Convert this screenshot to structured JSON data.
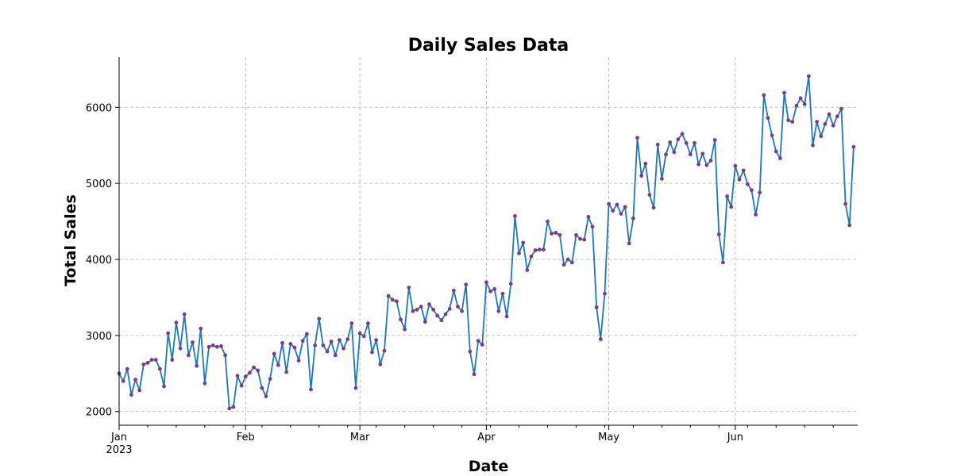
{
  "chart_data": {
    "type": "line",
    "title": "Daily Sales Data",
    "xlabel": "Date",
    "ylabel": "Total Sales",
    "x_start": "2023-01-01",
    "x_end": "2023-07-01",
    "ylim": [
      1820,
      6660
    ],
    "grid": true,
    "line_color": "#1f77b4",
    "marker_color": "#7b3c8c",
    "x_ticks": [
      {
        "date": "2023-01-01",
        "label": "Jan",
        "sublabel": "2023"
      },
      {
        "date": "2023-02-01",
        "label": "Feb"
      },
      {
        "date": "2023-03-01",
        "label": "Mar"
      },
      {
        "date": "2023-04-01",
        "label": "Apr"
      },
      {
        "date": "2023-05-01",
        "label": "May"
      },
      {
        "date": "2023-06-01",
        "label": "Jun"
      }
    ],
    "y_ticks": [
      2000,
      3000,
      4000,
      5000,
      6000
    ],
    "series": [
      {
        "values": [
          2500,
          2400,
          2560,
          2220,
          2420,
          2280,
          2620,
          2640,
          2680,
          2680,
          2560,
          2330,
          3030,
          2680,
          3170,
          2830,
          3280,
          2740,
          2910,
          2600,
          3090,
          2370,
          2850,
          2870,
          2850,
          2860,
          2740,
          2040,
          2060,
          2470,
          2340,
          2460,
          2510,
          2580,
          2540,
          2310,
          2200,
          2430,
          2760,
          2610,
          2900,
          2520,
          2890,
          2840,
          2670,
          2930,
          3020,
          2290,
          2870,
          3220,
          2870,
          2790,
          2920,
          2740,
          2940,
          2830,
          2950,
          3160,
          2310,
          3030,
          2990,
          3160,
          2780,
          2940,
          2620,
          2800,
          3520,
          3470,
          3450,
          3210,
          3080,
          3630,
          3320,
          3340,
          3380,
          3180,
          3410,
          3340,
          3260,
          3200,
          3280,
          3350,
          3590,
          3380,
          3320,
          3670,
          2790,
          2490,
          2930,
          2880,
          3700,
          3580,
          3610,
          3320,
          3550,
          3250,
          3680,
          4570,
          4080,
          4220,
          3860,
          4040,
          4120,
          4130,
          4130,
          4500,
          4340,
          4350,
          4320,
          3930,
          4000,
          3960,
          4320,
          4270,
          4260,
          4560,
          4430,
          3370,
          2950,
          3550,
          4730,
          4640,
          4720,
          4600,
          4690,
          4210,
          4540,
          5600,
          5100,
          5260,
          4850,
          4680,
          5510,
          5060,
          5380,
          5540,
          5410,
          5580,
          5650,
          5530,
          5380,
          5530,
          5250,
          5390,
          5240,
          5300,
          5570,
          4330,
          3960,
          4830,
          4690,
          5230,
          5050,
          5170,
          4990,
          4910,
          4590,
          4880,
          6160,
          5860,
          5630,
          5420,
          5330,
          6190,
          5830,
          5810,
          6020,
          6120,
          6040,
          6410,
          5500,
          5810,
          5620,
          5780,
          5910,
          5760,
          5880,
          5980,
          4730,
          4450,
          5480
        ]
      }
    ]
  }
}
